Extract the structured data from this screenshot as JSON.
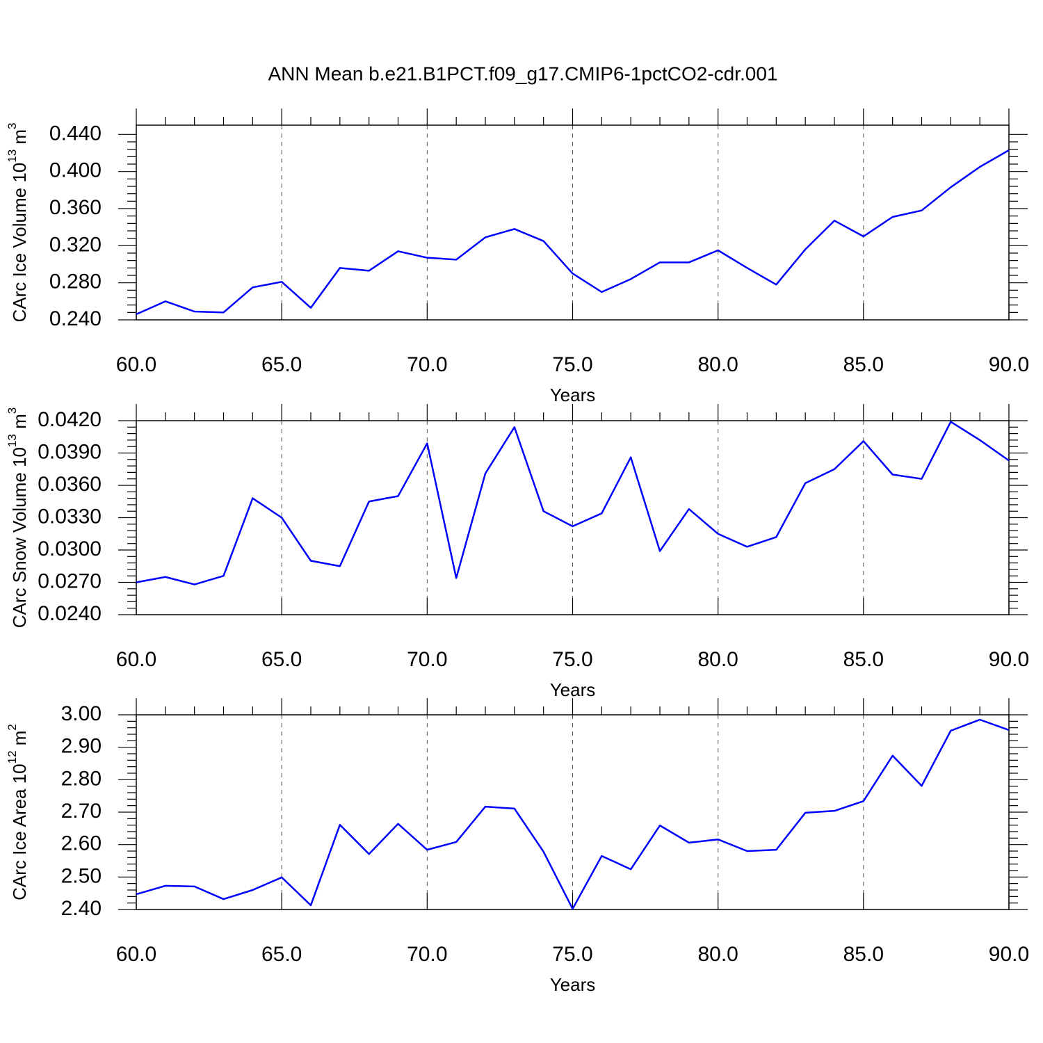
{
  "chart_data": [
    {
      "type": "line",
      "title": "ANN Mean b.e21.B1PCT.f09_g17.CMIP6-1pctCO2-cdr.001",
      "ylabel": {
        "text": "CArc Ice Volume 10",
        "power": "13",
        "unit": " m",
        "unit_power": "3"
      },
      "xlabel": "Years",
      "color": "#0000ff",
      "grid": true,
      "x": [
        60,
        61,
        62,
        63,
        64,
        65,
        66,
        67,
        68,
        69,
        70,
        71,
        72,
        73,
        74,
        75,
        76,
        77,
        78,
        79,
        80,
        81,
        82,
        83,
        84,
        85,
        86,
        87,
        88,
        89,
        90
      ],
      "values": [
        0.246,
        0.26,
        0.249,
        0.248,
        0.275,
        0.281,
        0.253,
        0.296,
        0.293,
        0.314,
        0.307,
        0.305,
        0.329,
        0.338,
        0.325,
        0.29,
        0.27,
        0.284,
        0.302,
        0.302,
        0.315,
        0.296,
        0.278,
        0.316,
        0.347,
        0.33,
        0.351,
        0.358,
        0.383,
        0.405,
        0.423
      ],
      "xlim": [
        60,
        90
      ],
      "xticks": [
        {
          "value": 60,
          "label": "60.0"
        },
        {
          "value": 65,
          "label": "65.0"
        },
        {
          "value": 70,
          "label": "70.0"
        },
        {
          "value": 75,
          "label": "75.0"
        },
        {
          "value": 80,
          "label": "80.0"
        },
        {
          "value": 85,
          "label": "85.0"
        },
        {
          "value": 90,
          "label": "90.0"
        }
      ],
      "ylim": [
        0.24,
        0.45
      ],
      "yticks": [
        {
          "value": 0.24,
          "label": "0.240"
        },
        {
          "value": 0.28,
          "label": "0.280"
        },
        {
          "value": 0.32,
          "label": "0.320"
        },
        {
          "value": 0.36,
          "label": "0.360"
        },
        {
          "value": 0.4,
          "label": "0.400"
        },
        {
          "value": 0.44,
          "label": "0.440"
        }
      ]
    },
    {
      "type": "line",
      "ylabel": {
        "text": "CArc Snow Volume 10",
        "power": "13",
        "unit": " m",
        "unit_power": "3"
      },
      "xlabel": "Years",
      "color": "#0000ff",
      "grid": true,
      "x": [
        60,
        61,
        62,
        63,
        64,
        65,
        66,
        67,
        68,
        69,
        70,
        71,
        72,
        73,
        74,
        75,
        76,
        77,
        78,
        79,
        80,
        81,
        82,
        83,
        84,
        85,
        86,
        87,
        88,
        89,
        90
      ],
      "values": [
        0.027,
        0.0275,
        0.0268,
        0.0276,
        0.0348,
        0.033,
        0.029,
        0.0285,
        0.0345,
        0.035,
        0.0399,
        0.0274,
        0.0371,
        0.0414,
        0.0336,
        0.0322,
        0.0334,
        0.0386,
        0.0299,
        0.0338,
        0.0315,
        0.0303,
        0.0312,
        0.0362,
        0.0375,
        0.0401,
        0.037,
        0.0366,
        0.0419,
        0.0402,
        0.0383
      ],
      "xlim": [
        60,
        90
      ],
      "xticks": [
        {
          "value": 60,
          "label": "60.0"
        },
        {
          "value": 65,
          "label": "65.0"
        },
        {
          "value": 70,
          "label": "70.0"
        },
        {
          "value": 75,
          "label": "75.0"
        },
        {
          "value": 80,
          "label": "80.0"
        },
        {
          "value": 85,
          "label": "85.0"
        },
        {
          "value": 90,
          "label": "90.0"
        }
      ],
      "ylim": [
        0.024,
        0.042
      ],
      "yticks": [
        {
          "value": 0.024,
          "label": "0.0240"
        },
        {
          "value": 0.027,
          "label": "0.0270"
        },
        {
          "value": 0.03,
          "label": "0.0300"
        },
        {
          "value": 0.033,
          "label": "0.0330"
        },
        {
          "value": 0.036,
          "label": "0.0360"
        },
        {
          "value": 0.039,
          "label": "0.0390"
        },
        {
          "value": 0.042,
          "label": "0.0420"
        }
      ]
    },
    {
      "type": "line",
      "ylabel": {
        "text": "CArc Ice Area 10",
        "power": "12",
        "unit": " m",
        "unit_power": "2"
      },
      "xlabel": "Years",
      "color": "#0000ff",
      "grid": true,
      "x": [
        60,
        61,
        62,
        63,
        64,
        65,
        66,
        67,
        68,
        69,
        70,
        71,
        72,
        73,
        74,
        75,
        76,
        77,
        78,
        79,
        80,
        81,
        82,
        83,
        84,
        85,
        86,
        87,
        88,
        89,
        90
      ],
      "values": [
        2.447,
        2.473,
        2.471,
        2.432,
        2.46,
        2.499,
        2.413,
        2.661,
        2.571,
        2.664,
        2.584,
        2.608,
        2.717,
        2.711,
        2.578,
        2.402,
        2.565,
        2.524,
        2.659,
        2.606,
        2.616,
        2.58,
        2.584,
        2.698,
        2.704,
        2.734,
        2.874,
        2.781,
        2.951,
        2.985,
        2.953
      ],
      "xlim": [
        60,
        90
      ],
      "xticks": [
        {
          "value": 60,
          "label": "60.0"
        },
        {
          "value": 65,
          "label": "65.0"
        },
        {
          "value": 70,
          "label": "70.0"
        },
        {
          "value": 75,
          "label": "75.0"
        },
        {
          "value": 80,
          "label": "80.0"
        },
        {
          "value": 85,
          "label": "85.0"
        },
        {
          "value": 90,
          "label": "90.0"
        }
      ],
      "ylim": [
        2.4,
        3.0
      ],
      "yticks": [
        {
          "value": 2.4,
          "label": "2.40"
        },
        {
          "value": 2.5,
          "label": "2.50"
        },
        {
          "value": 2.6,
          "label": "2.60"
        },
        {
          "value": 2.7,
          "label": "2.70"
        },
        {
          "value": 2.8,
          "label": "2.80"
        },
        {
          "value": 2.9,
          "label": "2.90"
        },
        {
          "value": 3.0,
          "label": "3.00"
        }
      ]
    }
  ]
}
